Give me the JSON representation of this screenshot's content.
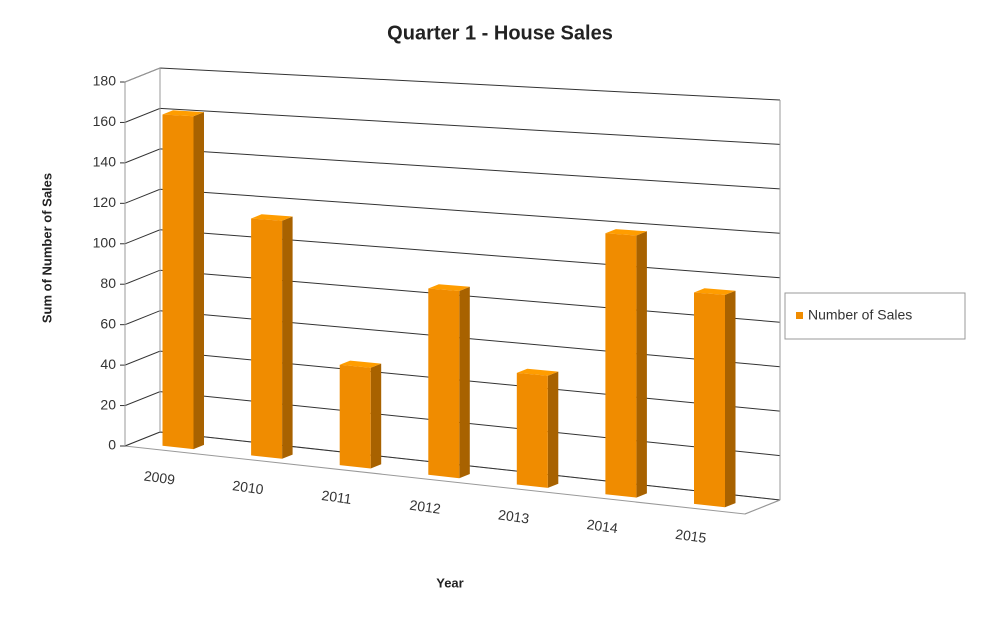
{
  "chart_data": {
    "type": "bar3d",
    "title": "Quarter 1 - House Sales",
    "x_label": "Year",
    "y_label": "Sum of Number of Sales",
    "categories": [
      "2009",
      "2010",
      "2011",
      "2012",
      "2013",
      "2014",
      "2015"
    ],
    "series": [
      {
        "name": "Number of Sales",
        "color": "#f08c00",
        "values": [
          163,
          115,
          48,
          88,
          52,
          120,
          96
        ]
      }
    ],
    "ylim": [
      0,
      180
    ],
    "yticks": [
      0,
      20,
      40,
      60,
      80,
      100,
      120,
      140,
      160,
      180
    ],
    "grid": true,
    "legend": "right"
  }
}
